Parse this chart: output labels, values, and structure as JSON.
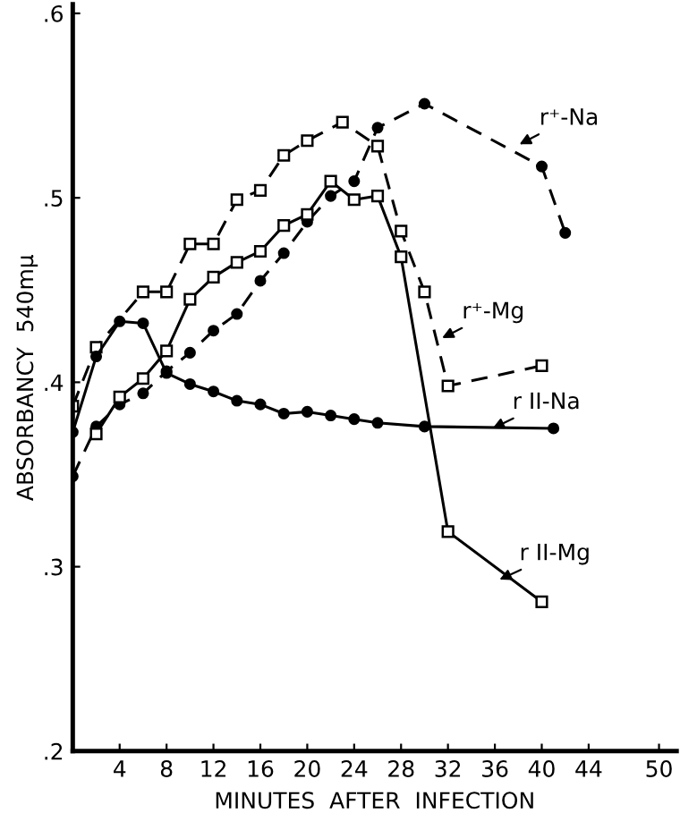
{
  "chart_data": {
    "type": "line",
    "xlabel": "MINUTES  AFTER  INFECTION",
    "ylabel": "ABSORBANCY  540mμ",
    "xlim": [
      0,
      51.5
    ],
    "ylim": [
      0.2,
      0.605
    ],
    "xticks": [
      4,
      8,
      12,
      16,
      20,
      24,
      28,
      32,
      36,
      40,
      44,
      50
    ],
    "yticks": [
      {
        "value": 0.2,
        "label": ".2"
      },
      {
        "value": 0.3,
        "label": ".3"
      },
      {
        "value": 0.4,
        "label": ".4"
      },
      {
        "value": 0.5,
        "label": ".5"
      },
      {
        "value": 0.6,
        "label": ".6"
      }
    ],
    "grid": false,
    "legend": false,
    "series": [
      {
        "color": "#000000",
        "marker": "circle",
        "line_style": "dashed",
        "x": [
          0,
          2,
          4,
          6,
          8,
          10,
          12,
          14,
          16,
          18,
          20,
          22,
          24,
          26,
          30,
          40,
          42
        ],
        "values": [
          0.349,
          0.376,
          0.388,
          0.394,
          0.406,
          0.416,
          0.428,
          0.437,
          0.455,
          0.47,
          0.487,
          0.501,
          0.509,
          0.538,
          0.551,
          0.517,
          0.481
        ]
      },
      {
        "color": "#000000",
        "marker": "square",
        "line_style": "dashed",
        "x": [
          0,
          2,
          6,
          8,
          10,
          12,
          14,
          16,
          18,
          20,
          23,
          26,
          28,
          30,
          32,
          40
        ],
        "values": [
          0.387,
          0.419,
          0.449,
          0.449,
          0.475,
          0.475,
          0.499,
          0.504,
          0.523,
          0.531,
          0.541,
          0.528,
          0.482,
          0.449,
          0.398,
          0.409
        ]
      },
      {
        "color": "#000000",
        "marker": "circle",
        "line_style": "solid",
        "x": [
          0,
          2,
          4,
          6,
          8,
          10,
          12,
          14,
          16,
          18,
          20,
          22,
          24,
          26,
          30,
          41
        ],
        "values": [
          0.373,
          0.414,
          0.433,
          0.432,
          0.405,
          0.399,
          0.395,
          0.39,
          0.388,
          0.383,
          0.384,
          0.382,
          0.38,
          0.378,
          0.376,
          0.375
        ]
      },
      {
        "color": "#000000",
        "marker": "square",
        "line_style": "solid",
        "x": [
          2,
          4,
          6,
          8,
          10,
          12,
          14,
          16,
          18,
          20,
          22,
          24,
          26,
          28,
          32,
          40
        ],
        "values": [
          0.372,
          0.392,
          0.402,
          0.417,
          0.445,
          0.457,
          0.465,
          0.471,
          0.485,
          0.491,
          0.509,
          0.499,
          0.501,
          0.468,
          0.319,
          0.281
        ]
      }
    ],
    "annotations": [
      {
        "text": "r⁺-Na",
        "x": 38.1,
        "y": 0.529
      },
      {
        "text": "r⁺-Mg",
        "x": 31.5,
        "y": 0.424
      },
      {
        "text": "r II-Na",
        "x": 35.8,
        "y": 0.375
      },
      {
        "text": "r II-Mg",
        "x": 36.4,
        "y": 0.293
      }
    ]
  }
}
